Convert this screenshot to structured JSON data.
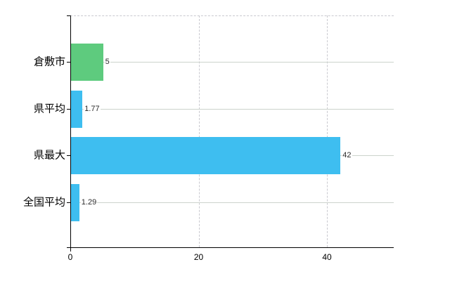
{
  "chart_data": {
    "type": "bar",
    "orientation": "horizontal",
    "title": "",
    "xlabel": "",
    "ylabel": "",
    "categories": [
      "倉敷市",
      "県平均",
      "県最大",
      "全国平均"
    ],
    "values": [
      5,
      1.77,
      42,
      1.29
    ],
    "value_labels": [
      "5",
      "1.77",
      "42",
      "1.29"
    ],
    "bar_colors": [
      "#5ecb7e",
      "#3ebef0",
      "#3ebef0",
      "#3ebef0"
    ],
    "x_ticks": [
      0,
      20,
      40
    ],
    "xlim": [
      0,
      50.4
    ],
    "grid": {
      "vertical_dashed_at": [
        20,
        40
      ],
      "horizontal_per_category": true,
      "top_border_dashed": true
    },
    "legend_position": "none",
    "colors": {
      "background": "#ffffff",
      "axis": "#000000",
      "grid_solid": "#ccd3cc",
      "grid_dashed": "#c9c9cf",
      "bar_green": "#5ecb7e",
      "bar_blue": "#3ebef0",
      "value_label_text": "#2b2b2b",
      "tick_label_text": "#000000"
    }
  }
}
